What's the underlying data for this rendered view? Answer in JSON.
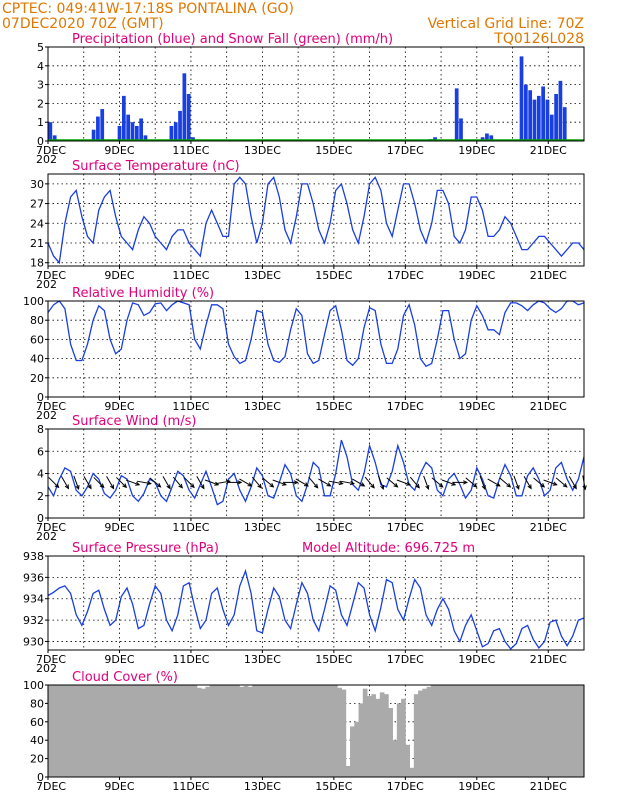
{
  "header": {
    "line1": "CPTEC:   049:41W-17:18S   PONTALINA (GO)",
    "line2": "07DEC2020 70Z (GMT)",
    "grid_note": "Vertical Grid Line: 70Z",
    "run_code": "TQ0126L028"
  },
  "x_ticks": [
    "7DEC",
    "9DEC",
    "11DEC",
    "13DEC",
    "15DEC",
    "17DEC",
    "19DEC",
    "21DEC"
  ],
  "x_ticks_clipped": "202",
  "altitude_label": "Model Altitude: 696.725 m",
  "colors": {
    "title": "#e0007a",
    "header": "#e07800",
    "line": "#1a3fe0",
    "snow": "#00a000",
    "cloud": "#aaaaaa"
  },
  "chart_data": [
    {
      "type": "bar",
      "title": "Precipitation (blue) and Snow Fall (green) (mm/h)",
      "ylim": [
        0,
        5
      ],
      "yticks": [
        0,
        1,
        2,
        3,
        4,
        5
      ],
      "time_start_day": 7,
      "time_step_hours": 3,
      "series": [
        {
          "name": "Precipitation",
          "color": "#1a3fe0",
          "values": [
            1.0,
            0.3,
            0.0,
            0.0,
            0.0,
            0.0,
            0.0,
            0.0,
            0.0,
            0.0,
            0.6,
            1.3,
            1.7,
            0.0,
            0.0,
            0.0,
            0.8,
            2.4,
            1.4,
            1.0,
            0.8,
            1.2,
            0.3,
            0.0,
            0.0,
            0.0,
            0.0,
            0.0,
            0.8,
            1.0,
            1.6,
            3.6,
            2.5,
            0.2,
            0.0,
            0.0,
            0.0,
            0.0,
            0.0,
            0.0,
            0.0,
            0.0,
            0.0,
            0.0,
            0.0,
            0.0,
            0.0,
            0.0,
            0.0,
            0.0,
            0.0,
            0.0,
            0.0,
            0.0,
            0.0,
            0.0,
            0.0,
            0.0,
            0.0,
            0.0,
            0.0,
            0.0,
            0.0,
            0.0,
            0.0,
            0.0,
            0.0,
            0.0,
            0.0,
            0.0,
            0.0,
            0.0,
            0.0,
            0.0,
            0.0,
            0.0,
            0.0,
            0.0,
            0.0,
            0.0,
            0.0,
            0.0,
            0.0,
            0.0,
            0.0,
            0.0,
            0.0,
            0.0,
            0.1,
            0.2,
            0.0,
            0.0,
            0.0,
            0.0,
            2.8,
            1.2,
            0.0,
            0.0,
            0.0,
            0.0,
            0.2,
            0.4,
            0.3,
            0.0,
            0.0,
            0.0,
            0.0,
            0.0,
            0.0,
            4.5,
            3.0,
            2.7,
            2.2,
            2.4,
            2.9,
            2.2,
            1.4,
            2.5,
            3.2,
            1.8,
            0.0,
            0.0,
            0.0,
            0.0
          ]
        },
        {
          "name": "Snow Fall",
          "color": "#00a000",
          "values": [
            0,
            0,
            0,
            0,
            0,
            0,
            0,
            0,
            0,
            0,
            0,
            0,
            0,
            0,
            0,
            0,
            0,
            0,
            0,
            0,
            0,
            0,
            0,
            0,
            0,
            0,
            0,
            0,
            0,
            0,
            0,
            0,
            0,
            0,
            0,
            0,
            0,
            0,
            0,
            0,
            0,
            0,
            0,
            0,
            0,
            0,
            0,
            0,
            0,
            0,
            0,
            0,
            0,
            0,
            0,
            0,
            0,
            0,
            0,
            0,
            0,
            0,
            0,
            0,
            0,
            0,
            0,
            0,
            0,
            0,
            0,
            0,
            0,
            0,
            0,
            0,
            0,
            0,
            0,
            0,
            0,
            0,
            0,
            0,
            0,
            0,
            0,
            0,
            0,
            0,
            0,
            0,
            0,
            0,
            0,
            0,
            0,
            0,
            0,
            0,
            0,
            0,
            0,
            0,
            0,
            0,
            0,
            0,
            0,
            0,
            0,
            0,
            0,
            0,
            0,
            0,
            0,
            0,
            0,
            0,
            0,
            0,
            0,
            0,
            0
          ]
        }
      ]
    },
    {
      "type": "line",
      "title": "Surface Temperature (nC)",
      "ylim": [
        17.5,
        31.5
      ],
      "yticks": [
        18,
        21,
        24,
        27,
        30
      ],
      "time_start_day": 7,
      "time_step_hours": 3,
      "series": [
        {
          "color": "#1a3fe0",
          "values": [
            21,
            19,
            18,
            24,
            28,
            29,
            25,
            22,
            21,
            26,
            28,
            29,
            25,
            22,
            21,
            20,
            23,
            25,
            24,
            22,
            21,
            20,
            22,
            23,
            23,
            21,
            20,
            19,
            24,
            26,
            24,
            22,
            22,
            30,
            31,
            30,
            25,
            21,
            24,
            30,
            31,
            28,
            23,
            21,
            25,
            30,
            30,
            27,
            23,
            21,
            24,
            29,
            30,
            27,
            23,
            21,
            25,
            30,
            31,
            29,
            24,
            22,
            26,
            30,
            30,
            27,
            23,
            21,
            24,
            29,
            29,
            27,
            22,
            21,
            23,
            28,
            28,
            26,
            22,
            22,
            23,
            25,
            24,
            22,
            20,
            20,
            21,
            22,
            22,
            21,
            20,
            19,
            20,
            21,
            21,
            20
          ]
        }
      ]
    },
    {
      "type": "line",
      "title": "Relative Humidity (%)",
      "ylim": [
        0,
        100
      ],
      "yticks": [
        0,
        20,
        40,
        60,
        80,
        100
      ],
      "time_start_day": 7,
      "time_step_hours": 3,
      "series": [
        {
          "color": "#1a3fe0",
          "values": [
            88,
            96,
            100,
            92,
            55,
            38,
            38,
            55,
            80,
            95,
            90,
            60,
            45,
            50,
            80,
            98,
            96,
            85,
            88,
            97,
            98,
            90,
            96,
            100,
            98,
            96,
            60,
            50,
            75,
            96,
            96,
            92,
            55,
            42,
            35,
            38,
            60,
            90,
            88,
            55,
            38,
            36,
            42,
            70,
            92,
            85,
            45,
            35,
            38,
            65,
            90,
            95,
            70,
            38,
            33,
            40,
            72,
            93,
            90,
            55,
            35,
            35,
            50,
            85,
            96,
            75,
            40,
            32,
            35,
            60,
            90,
            90,
            60,
            40,
            45,
            80,
            95,
            85,
            70,
            70,
            65,
            88,
            98,
            98,
            95,
            90,
            96,
            100,
            98,
            92,
            88,
            92,
            100,
            100,
            96,
            98
          ]
        }
      ]
    },
    {
      "type": "line",
      "title": "Surface Wind (m/s)",
      "ylim": [
        0,
        8
      ],
      "yticks": [
        0,
        2,
        4,
        6,
        8
      ],
      "time_start_day": 7,
      "time_step_hours": 3,
      "series": [
        {
          "color": "#1a3fe0",
          "values": [
            2.8,
            2.0,
            3.5,
            4.5,
            4.2,
            2.5,
            2.0,
            2.8,
            4.0,
            3.5,
            2.2,
            1.8,
            2.5,
            3.8,
            3.5,
            2.0,
            1.5,
            2.2,
            3.5,
            3.2,
            2.0,
            1.5,
            2.8,
            4.2,
            3.8,
            2.5,
            1.8,
            3.0,
            4.2,
            2.8,
            1.2,
            1.5,
            3.5,
            4.0,
            2.5,
            1.5,
            2.8,
            4.5,
            3.8,
            2.0,
            1.8,
            3.2,
            4.8,
            4.0,
            2.0,
            1.5,
            3.0,
            5.0,
            4.5,
            2.0,
            2.0,
            4.0,
            7.0,
            5.5,
            3.0,
            2.5,
            4.0,
            6.5,
            5.0,
            3.0,
            2.8,
            4.2,
            6.5,
            5.0,
            3.0,
            2.5,
            4.0,
            5.0,
            4.5,
            2.5,
            2.0,
            3.5,
            4.0,
            3.0,
            1.8,
            2.5,
            4.5,
            3.5,
            2.0,
            1.8,
            3.5,
            4.8,
            3.8,
            2.0,
            2.0,
            3.8,
            4.5,
            3.5,
            2.0,
            2.5,
            4.5,
            5.0,
            3.5,
            2.5,
            3.5,
            5.5
          ]
        }
      ],
      "arrows_dir_deg": [
        135,
        135,
        150,
        140,
        160,
        170,
        150,
        140,
        135,
        130,
        150,
        160,
        135,
        120,
        110,
        100,
        100,
        120,
        130,
        140,
        150,
        160,
        140,
        130,
        135,
        140,
        150,
        160,
        110,
        100,
        80,
        70,
        90,
        110,
        120,
        130,
        140,
        150,
        130,
        120,
        110,
        100,
        90,
        110,
        120,
        130,
        140,
        130,
        120,
        110,
        100,
        90,
        100,
        110,
        120,
        130,
        140,
        150,
        160,
        140,
        130,
        120,
        110,
        130,
        140,
        150,
        160,
        140,
        130,
        120,
        110,
        100,
        90,
        110,
        130,
        150,
        160,
        140,
        120,
        110,
        130,
        150,
        160,
        170,
        150,
        140,
        130,
        120,
        110,
        120,
        130,
        140,
        150,
        160,
        170,
        150
      ]
    },
    {
      "type": "line",
      "title": "Surface Pressure (hPa)",
      "ylim": [
        929.2,
        938
      ],
      "yticks": [
        930,
        932,
        934,
        936,
        938
      ],
      "time_start_day": 7,
      "time_step_hours": 3,
      "series": [
        {
          "color": "#1a3fe0",
          "values": [
            934.3,
            934.6,
            935.0,
            935.2,
            934.5,
            932.5,
            931.5,
            932.8,
            934.5,
            934.8,
            933.0,
            931.5,
            932.0,
            934.2,
            935.0,
            933.5,
            931.2,
            931.5,
            933.5,
            935.2,
            934.5,
            932.0,
            931.0,
            932.5,
            935.2,
            935.5,
            933.2,
            931.2,
            932.0,
            934.5,
            935.0,
            933.0,
            931.5,
            932.5,
            935.2,
            936.6,
            934.5,
            931.0,
            930.8,
            933.0,
            935.0,
            934.2,
            932.0,
            931.2,
            933.5,
            935.5,
            934.5,
            932.0,
            931.0,
            933.0,
            935.2,
            934.8,
            932.5,
            931.5,
            933.5,
            935.5,
            935.0,
            932.5,
            931.0,
            933.2,
            935.8,
            935.5,
            933.0,
            932.0,
            934.0,
            935.8,
            935.0,
            932.5,
            931.5,
            933.0,
            934.0,
            933.0,
            931.0,
            930.0,
            931.5,
            932.5,
            931.0,
            929.5,
            929.8,
            931.0,
            931.2,
            930.0,
            929.3,
            929.8,
            931.2,
            931.5,
            930.2,
            929.4,
            930.0,
            931.8,
            932.0,
            930.5,
            929.6,
            930.5,
            932.0,
            932.2
          ]
        }
      ]
    },
    {
      "type": "area",
      "title": "Cloud Cover (%)",
      "ylim": [
        0,
        100
      ],
      "yticks": [
        0,
        20,
        40,
        60,
        80,
        100
      ],
      "time_start_day": 7,
      "time_step_hours": 3,
      "series": [
        {
          "color": "#aaaaaa",
          "values": [
            100,
            100,
            100,
            100,
            100,
            100,
            100,
            100,
            100,
            100,
            100,
            100,
            100,
            100,
            100,
            100,
            100,
            100,
            100,
            100,
            100,
            100,
            100,
            100,
            100,
            100,
            100,
            100,
            100,
            100,
            100,
            100,
            100,
            100,
            100,
            97,
            96,
            98,
            100,
            100,
            100,
            100,
            100,
            100,
            100,
            98,
            99,
            98,
            100,
            100,
            100,
            100,
            100,
            100,
            100,
            100,
            100,
            100,
            100,
            100,
            100,
            100,
            100,
            100,
            100,
            100,
            100,
            100,
            97,
            95,
            12,
            55,
            60,
            80,
            96,
            88,
            90,
            85,
            92,
            90,
            75,
            40,
            80,
            85,
            35,
            10,
            90,
            94,
            96,
            98,
            100,
            100,
            100,
            100,
            100,
            100,
            100,
            100,
            100,
            100,
            100,
            100,
            100,
            100,
            100,
            100,
            100,
            100,
            100,
            100,
            100,
            100,
            100,
            100,
            100,
            100,
            100,
            100,
            100,
            100,
            100,
            100,
            100,
            100,
            100,
            100
          ]
        }
      ]
    }
  ]
}
